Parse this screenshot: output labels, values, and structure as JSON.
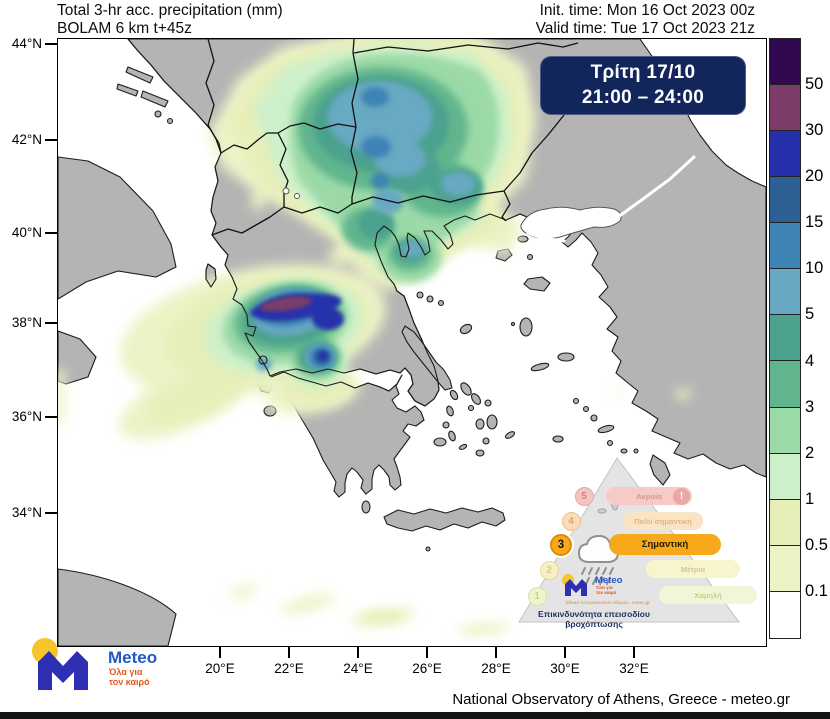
{
  "header": {
    "title": "Total 3-hr acc. precipitation (mm)",
    "model": "BOLAM 6 km t+45z",
    "init_time": "Init. time: Mon 16 Oct 2023 00z",
    "valid_time": "Valid time: Tue 17 Oct 2023 21z"
  },
  "time_box": {
    "day": "Τρίτη 17/10",
    "range": "21:00 – 24:00",
    "bg": "#13265b"
  },
  "axes": {
    "lat": [
      "44°N",
      "42°N",
      "40°N",
      "38°N",
      "36°N",
      "34°N"
    ],
    "lon": [
      "20°E",
      "22°E",
      "24°E",
      "26°E",
      "28°E",
      "30°E",
      "32°E"
    ]
  },
  "legend": {
    "labels": [
      "50",
      "30",
      "20",
      "15",
      "10",
      "5",
      "4",
      "3",
      "2",
      "1",
      "0.5",
      "0.1"
    ],
    "colors": [
      "#31094e",
      "#7b3d68",
      "#2630ab",
      "#2c5f94",
      "#3d83b5",
      "#67a9c3",
      "#4ba28e",
      "#60b58d",
      "#9bdaa7",
      "#cdf0cb",
      "#e7efb9",
      "#edf3c6",
      "#ffffff"
    ]
  },
  "map_colors": {
    "sea": "#ffffff",
    "land": "#b4b4b4",
    "coast": "#1c1c1c",
    "border": "#111111"
  },
  "risk_pyramid": {
    "caption": "Επικινδυνότητα επεισοδίου βροχόπτωσης",
    "active_level": "3",
    "levels": [
      {
        "num": "5",
        "label": "Ακραία",
        "badge": "!"
      },
      {
        "num": "4",
        "label": "Πολύ σημαντική"
      },
      {
        "num": "3",
        "label": "Σημαντική"
      },
      {
        "num": "2",
        "label": "Μέτρια"
      },
      {
        "num": "1",
        "label": "Χαμηλή"
      }
    ],
    "logo": {
      "name": "Meteo",
      "tagline1": "Όλα για",
      "tagline2": "τον καιρό",
      "org": "Εθνικό Αστεροσκοπείο Αθηνών - meteo.gr"
    }
  },
  "footer": {
    "brand": "Meteo",
    "tagline1": "Όλα για",
    "tagline2": "τον καιρό",
    "attribution": "National Observatory of Athens, Greece - meteo.gr"
  }
}
